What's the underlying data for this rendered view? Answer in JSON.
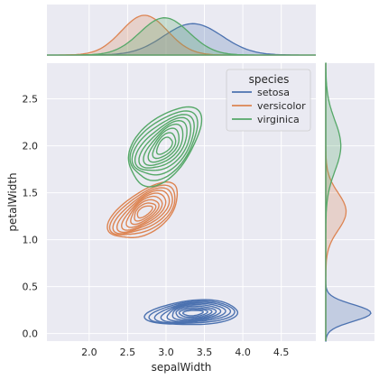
{
  "chart_data": {
    "type": "kde_jointplot",
    "xlabel": "sepalWidth",
    "ylabel": "petalWidth",
    "xlim": [
      1.45,
      4.95
    ],
    "ylim": [
      -0.08,
      2.88
    ],
    "x_ticks": [
      2.0,
      2.5,
      3.0,
      3.5,
      4.0,
      4.5
    ],
    "x_tick_labels": [
      "2.0",
      "2.5",
      "3.0",
      "3.5",
      "4.0",
      "4.5"
    ],
    "y_ticks": [
      0.0,
      0.5,
      1.0,
      1.5,
      2.0,
      2.5
    ],
    "y_tick_labels": [
      "0.0",
      "0.5",
      "1.0",
      "1.5",
      "2.0",
      "2.5"
    ],
    "legend": {
      "title": "species",
      "placement": "top-right"
    },
    "grid": true,
    "background": "#eaeaf2",
    "series": [
      {
        "name": "setosa",
        "color": "#4c72b0",
        "center": {
          "x": 3.35,
          "y": 0.22
        },
        "spread": {
          "x": 0.38,
          "y": 0.09
        },
        "rho": 0.25,
        "levels": 9
      },
      {
        "name": "versicolor",
        "color": "#dd8452",
        "center": {
          "x": 2.72,
          "y": 1.3
        },
        "spread": {
          "x": 0.3,
          "y": 0.2
        },
        "rho": 0.62,
        "levels": 9
      },
      {
        "name": "virginica",
        "color": "#55a868",
        "center": {
          "x": 2.98,
          "y": 2.0
        },
        "spread": {
          "x": 0.32,
          "y": 0.27
        },
        "rho": 0.55,
        "levels": 9
      }
    ]
  }
}
